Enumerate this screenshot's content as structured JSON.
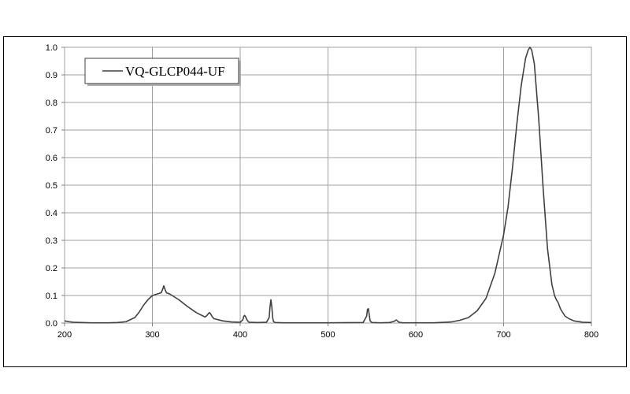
{
  "chart_data": {
    "type": "line",
    "title": "",
    "xlabel": "",
    "ylabel": "",
    "xlim": [
      200,
      800
    ],
    "ylim": [
      0,
      1.0
    ],
    "x_ticks": [
      "200",
      "300",
      "400",
      "500",
      "600",
      "700",
      "800"
    ],
    "y_ticks": [
      "0.0",
      "0.1",
      "0.2",
      "0.3",
      "0.4",
      "0.5",
      "0.6",
      "0.7",
      "0.8",
      "0.9",
      "1.0"
    ],
    "grid": true,
    "legend_position": "top-left",
    "line_color": "#404040",
    "series": [
      {
        "name": "VQ-GLCP044-UF",
        "x": [
          200,
          205,
          210,
          220,
          230,
          240,
          250,
          260,
          270,
          280,
          285,
          290,
          295,
          300,
          305,
          310,
          312,
          313,
          314,
          316,
          320,
          325,
          330,
          340,
          350,
          355,
          360,
          362,
          364,
          365,
          366,
          368,
          370,
          380,
          390,
          400,
          403,
          404,
          405,
          406,
          408,
          410,
          420,
          430,
          433,
          434,
          435,
          436,
          437,
          438,
          440,
          450,
          500,
          540,
          544,
          545,
          546,
          547,
          548,
          550,
          560,
          570,
          575,
          577,
          578,
          579,
          581,
          585,
          600,
          620,
          640,
          650,
          660,
          670,
          680,
          690,
          700,
          705,
          710,
          715,
          720,
          725,
          728,
          730,
          732,
          735,
          740,
          745,
          750,
          755,
          758,
          760,
          762,
          765,
          770,
          775,
          780,
          790,
          800
        ],
        "y": [
          0.008,
          0.005,
          0.003,
          0.002,
          0.001,
          0.001,
          0.001,
          0.002,
          0.005,
          0.02,
          0.04,
          0.065,
          0.085,
          0.1,
          0.105,
          0.11,
          0.125,
          0.135,
          0.125,
          0.11,
          0.105,
          0.095,
          0.085,
          0.06,
          0.038,
          0.03,
          0.022,
          0.027,
          0.035,
          0.038,
          0.035,
          0.024,
          0.016,
          0.008,
          0.004,
          0.003,
          0.012,
          0.024,
          0.028,
          0.024,
          0.01,
          0.003,
          0.002,
          0.003,
          0.02,
          0.06,
          0.085,
          0.06,
          0.02,
          0.005,
          0.002,
          0.001,
          0.001,
          0.002,
          0.025,
          0.05,
          0.052,
          0.03,
          0.008,
          0.002,
          0.001,
          0.002,
          0.006,
          0.01,
          0.011,
          0.008,
          0.003,
          0.001,
          0.001,
          0.001,
          0.004,
          0.01,
          0.02,
          0.045,
          0.09,
          0.18,
          0.32,
          0.42,
          0.56,
          0.72,
          0.86,
          0.96,
          0.99,
          1.0,
          0.99,
          0.94,
          0.74,
          0.49,
          0.27,
          0.14,
          0.1,
          0.085,
          0.075,
          0.05,
          0.025,
          0.015,
          0.008,
          0.003,
          0.002
        ]
      }
    ]
  }
}
